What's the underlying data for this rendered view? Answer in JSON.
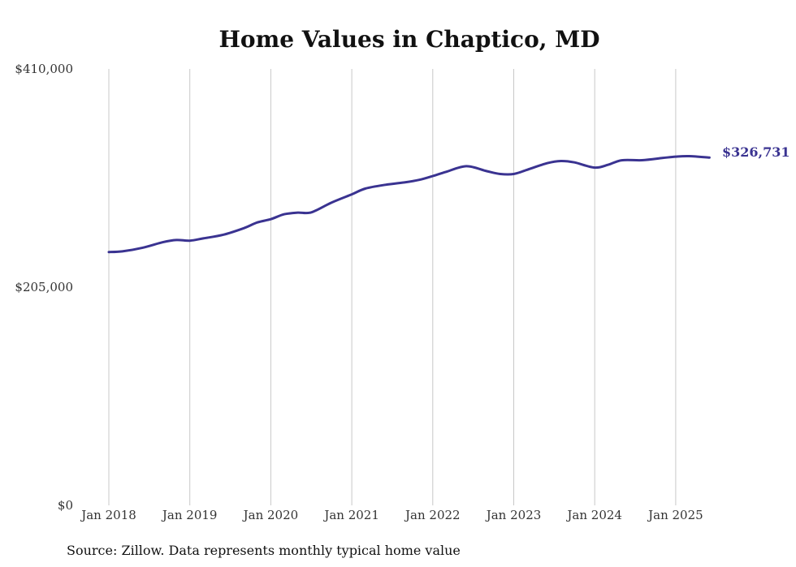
{
  "chart_data": {
    "type": "line",
    "title": "Home Values in Chaptico, MD",
    "source": "Source: Zillow. Data represents monthly typical home value",
    "xlabel": "",
    "ylabel": "",
    "ylim": [
      0,
      410000
    ],
    "y_ticks": [
      {
        "value": 0,
        "label": "$0"
      },
      {
        "value": 205000,
        "label": "$205,000"
      },
      {
        "value": 410000,
        "label": "$410,000"
      }
    ],
    "x_ticks": [
      "Jan 2018",
      "Jan 2019",
      "Jan 2020",
      "Jan 2021",
      "Jan 2022",
      "Jan 2023",
      "Jan 2024",
      "Jan 2025"
    ],
    "grid": "vertical",
    "line_color": "#3a3391",
    "end_label": "$326,731",
    "series": [
      {
        "points": [
          {
            "x": "2018-01",
            "y": 238000
          },
          {
            "x": "2018-03",
            "y": 238600
          },
          {
            "x": "2018-06",
            "y": 242000
          },
          {
            "x": "2018-09",
            "y": 247200
          },
          {
            "x": "2018-11",
            "y": 249300
          },
          {
            "x": "2019-01",
            "y": 248700
          },
          {
            "x": "2019-03",
            "y": 250800
          },
          {
            "x": "2019-06",
            "y": 254300
          },
          {
            "x": "2019-09",
            "y": 260400
          },
          {
            "x": "2019-11",
            "y": 265800
          },
          {
            "x": "2020-01",
            "y": 268900
          },
          {
            "x": "2020-03",
            "y": 273500
          },
          {
            "x": "2020-05",
            "y": 275000
          },
          {
            "x": "2020-07",
            "y": 275300
          },
          {
            "x": "2020-10",
            "y": 284500
          },
          {
            "x": "2021-01",
            "y": 292200
          },
          {
            "x": "2021-03",
            "y": 297600
          },
          {
            "x": "2021-06",
            "y": 301200
          },
          {
            "x": "2021-09",
            "y": 303600
          },
          {
            "x": "2021-11",
            "y": 305800
          },
          {
            "x": "2022-01",
            "y": 309400
          },
          {
            "x": "2022-03",
            "y": 313400
          },
          {
            "x": "2022-06",
            "y": 318600
          },
          {
            "x": "2022-09",
            "y": 314000
          },
          {
            "x": "2022-11",
            "y": 311300
          },
          {
            "x": "2023-01",
            "y": 311300
          },
          {
            "x": "2023-03",
            "y": 315300
          },
          {
            "x": "2023-06",
            "y": 321500
          },
          {
            "x": "2023-08",
            "y": 323500
          },
          {
            "x": "2023-10",
            "y": 322200
          },
          {
            "x": "2024-01",
            "y": 317300
          },
          {
            "x": "2024-03",
            "y": 320000
          },
          {
            "x": "2024-05",
            "y": 324200
          },
          {
            "x": "2024-08",
            "y": 324300
          },
          {
            "x": "2024-11",
            "y": 326300
          },
          {
            "x": "2025-01",
            "y": 327600
          },
          {
            "x": "2025-03",
            "y": 328100
          },
          {
            "x": "2025-06",
            "y": 326731
          }
        ]
      }
    ]
  }
}
